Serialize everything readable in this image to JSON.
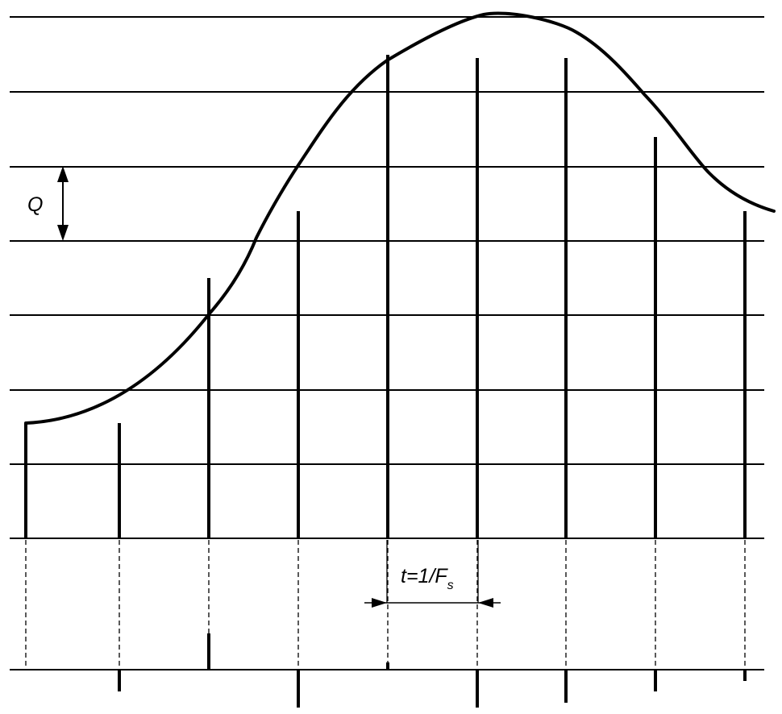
{
  "labels": {
    "quantization_step": "Q",
    "sampling_period_main": "t=1/F",
    "sampling_period_subscript": "s"
  },
  "diagram": {
    "quantization_levels": 8,
    "sample_count": 9,
    "colors": {
      "stroke": "#000000",
      "background": "#ffffff"
    }
  }
}
